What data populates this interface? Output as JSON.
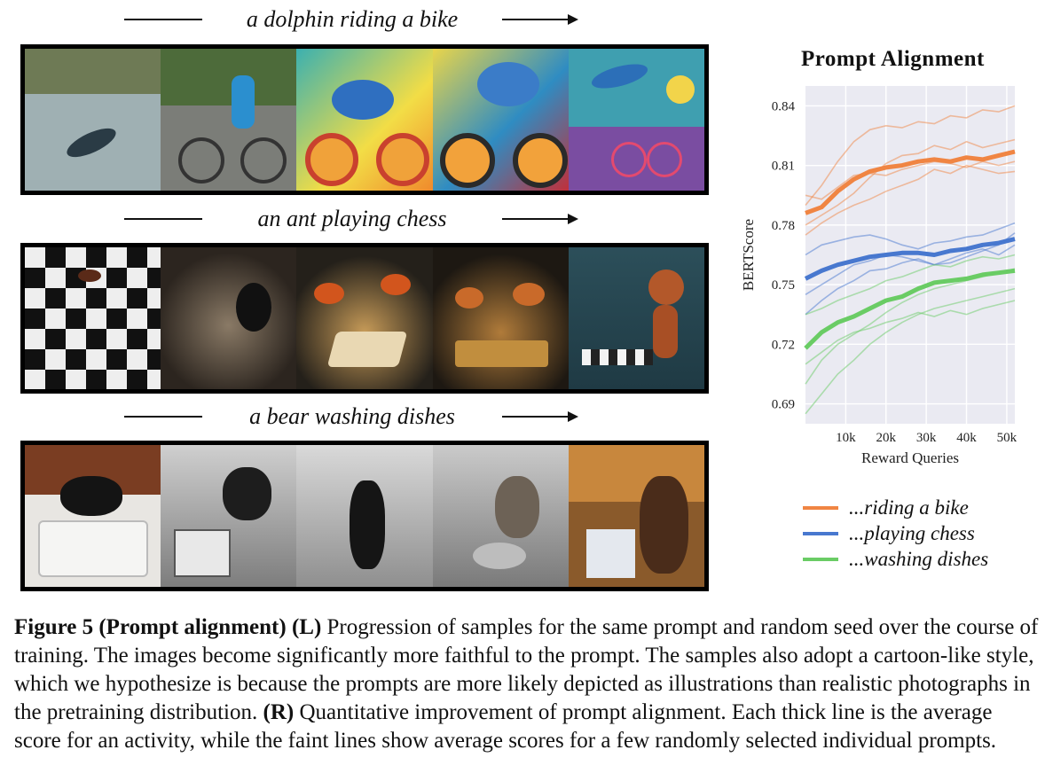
{
  "figure": {
    "prompts": [
      "a dolphin riding a bike",
      "an ant playing chess",
      "a bear washing dishes"
    ]
  },
  "chart_data": {
    "type": "line",
    "title": "Prompt Alignment",
    "xlabel": "Reward Queries",
    "ylabel": "BERTScore",
    "xlim": [
      0,
      52000
    ],
    "ylim": [
      0.68,
      0.85
    ],
    "x_ticks": [
      "10k",
      "20k",
      "30k",
      "40k",
      "50k"
    ],
    "x_tick_values": [
      10000,
      20000,
      30000,
      40000,
      50000
    ],
    "y_ticks": [
      "0.69",
      "0.72",
      "0.75",
      "0.78",
      "0.81",
      "0.84"
    ],
    "y_tick_values": [
      0.69,
      0.72,
      0.75,
      0.78,
      0.81,
      0.84
    ],
    "grid": true,
    "legend_position": "below",
    "x": [
      0,
      4000,
      8000,
      12000,
      16000,
      20000,
      24000,
      28000,
      32000,
      36000,
      40000,
      44000,
      48000,
      52000
    ],
    "series": [
      {
        "name": "...riding a bike",
        "color": "#f08543",
        "width": "thick",
        "values": [
          0.786,
          0.789,
          0.797,
          0.803,
          0.807,
          0.809,
          0.81,
          0.812,
          0.813,
          0.812,
          0.814,
          0.813,
          0.815,
          0.817
        ]
      },
      {
        "name": "...playing chess",
        "color": "#4878cf",
        "width": "thick",
        "values": [
          0.753,
          0.757,
          0.76,
          0.762,
          0.764,
          0.765,
          0.766,
          0.766,
          0.765,
          0.767,
          0.768,
          0.77,
          0.771,
          0.773
        ]
      },
      {
        "name": "...washing dishes",
        "color": "#6acc65",
        "width": "thick",
        "values": [
          0.718,
          0.726,
          0.731,
          0.734,
          0.738,
          0.742,
          0.744,
          0.748,
          0.751,
          0.752,
          0.753,
          0.755,
          0.756,
          0.757
        ]
      }
    ],
    "faint_series": [
      {
        "color": "#f08543",
        "values": [
          0.79,
          0.8,
          0.812,
          0.822,
          0.828,
          0.83,
          0.829,
          0.832,
          0.831,
          0.835,
          0.834,
          0.838,
          0.837,
          0.84
        ]
      },
      {
        "color": "#f08543",
        "values": [
          0.78,
          0.785,
          0.79,
          0.796,
          0.804,
          0.811,
          0.815,
          0.816,
          0.82,
          0.818,
          0.822,
          0.819,
          0.821,
          0.823
        ]
      },
      {
        "color": "#f08543",
        "values": [
          0.775,
          0.781,
          0.786,
          0.79,
          0.793,
          0.797,
          0.8,
          0.803,
          0.808,
          0.806,
          0.81,
          0.808,
          0.806,
          0.807
        ]
      },
      {
        "color": "#f08543",
        "values": [
          0.795,
          0.793,
          0.799,
          0.805,
          0.806,
          0.805,
          0.808,
          0.81,
          0.812,
          0.811,
          0.809,
          0.812,
          0.81,
          0.812
        ]
      },
      {
        "color": "#4878cf",
        "values": [
          0.765,
          0.77,
          0.772,
          0.774,
          0.775,
          0.773,
          0.77,
          0.768,
          0.771,
          0.772,
          0.774,
          0.775,
          0.778,
          0.781
        ]
      },
      {
        "color": "#4878cf",
        "values": [
          0.745,
          0.75,
          0.755,
          0.76,
          0.762,
          0.765,
          0.764,
          0.762,
          0.76,
          0.761,
          0.764,
          0.767,
          0.77,
          0.776
        ]
      },
      {
        "color": "#4878cf",
        "values": [
          0.735,
          0.742,
          0.748,
          0.752,
          0.757,
          0.758,
          0.761,
          0.763,
          0.76,
          0.763,
          0.766,
          0.768,
          0.765,
          0.77
        ]
      },
      {
        "color": "#6acc65",
        "values": [
          0.7,
          0.712,
          0.72,
          0.725,
          0.73,
          0.736,
          0.741,
          0.745,
          0.748,
          0.75,
          0.752,
          0.754,
          0.756,
          0.758
        ]
      },
      {
        "color": "#6acc65",
        "values": [
          0.685,
          0.695,
          0.705,
          0.712,
          0.72,
          0.726,
          0.731,
          0.735,
          0.738,
          0.74,
          0.742,
          0.744,
          0.746,
          0.748
        ]
      },
      {
        "color": "#6acc65",
        "values": [
          0.735,
          0.738,
          0.742,
          0.745,
          0.748,
          0.752,
          0.754,
          0.757,
          0.76,
          0.759,
          0.762,
          0.764,
          0.763,
          0.765
        ]
      },
      {
        "color": "#6acc65",
        "values": [
          0.71,
          0.716,
          0.722,
          0.726,
          0.728,
          0.731,
          0.733,
          0.736,
          0.734,
          0.737,
          0.735,
          0.738,
          0.74,
          0.742
        ]
      }
    ]
  },
  "caption": {
    "label": "Figure 5 (Prompt alignment)",
    "left_marker": "(L)",
    "text_1": " Progression of samples for the same prompt and random seed over the course of training. The images become significantly more faithful to the prompt. The samples also adopt a cartoon-like style, which we hypothesize is because the prompts are more likely depicted as illustrations than realistic photographs in the pretraining distribution. ",
    "right_marker": "(R)",
    "text_2": " Quantitative improvement of prompt alignment. Each thick line is the average score for an activity, while the faint lines show average scores for a few randomly selected individual prompts."
  },
  "colors": {
    "bike": "#f08543",
    "chess": "#4878cf",
    "dishes": "#6acc65",
    "plot_bg": "#eaeaf2"
  }
}
